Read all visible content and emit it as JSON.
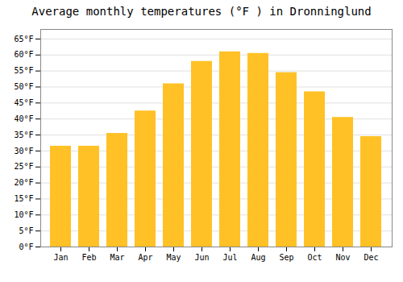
{
  "chart_data": {
    "type": "bar",
    "title": "Average monthly temperatures (°F ) in Dronninglund",
    "categories": [
      "Jan",
      "Feb",
      "Mar",
      "Apr",
      "May",
      "Jun",
      "Jul",
      "Aug",
      "Sep",
      "Oct",
      "Nov",
      "Dec"
    ],
    "values": [
      31.5,
      31.5,
      35.5,
      42.5,
      51.0,
      58.0,
      61.0,
      60.5,
      54.5,
      48.5,
      40.5,
      34.5
    ],
    "color": "#FFC125",
    "ylim": [
      0,
      68
    ],
    "yticks": [
      {
        "value": 0,
        "label": "0°F"
      },
      {
        "value": 5,
        "label": "5°F"
      },
      {
        "value": 10,
        "label": "10°F"
      },
      {
        "value": 15,
        "label": "15°F"
      },
      {
        "value": 20,
        "label": "20°F"
      },
      {
        "value": 25,
        "label": "25°F"
      },
      {
        "value": 30,
        "label": "30°F"
      },
      {
        "value": 35,
        "label": "35°F"
      },
      {
        "value": 40,
        "label": "40°F"
      },
      {
        "value": 45,
        "label": "45°F"
      },
      {
        "value": 50,
        "label": "50°F"
      },
      {
        "value": 55,
        "label": "55°F"
      },
      {
        "value": 60,
        "label": "60°F"
      },
      {
        "value": 65,
        "label": "65°F"
      }
    ],
    "grid": true
  }
}
